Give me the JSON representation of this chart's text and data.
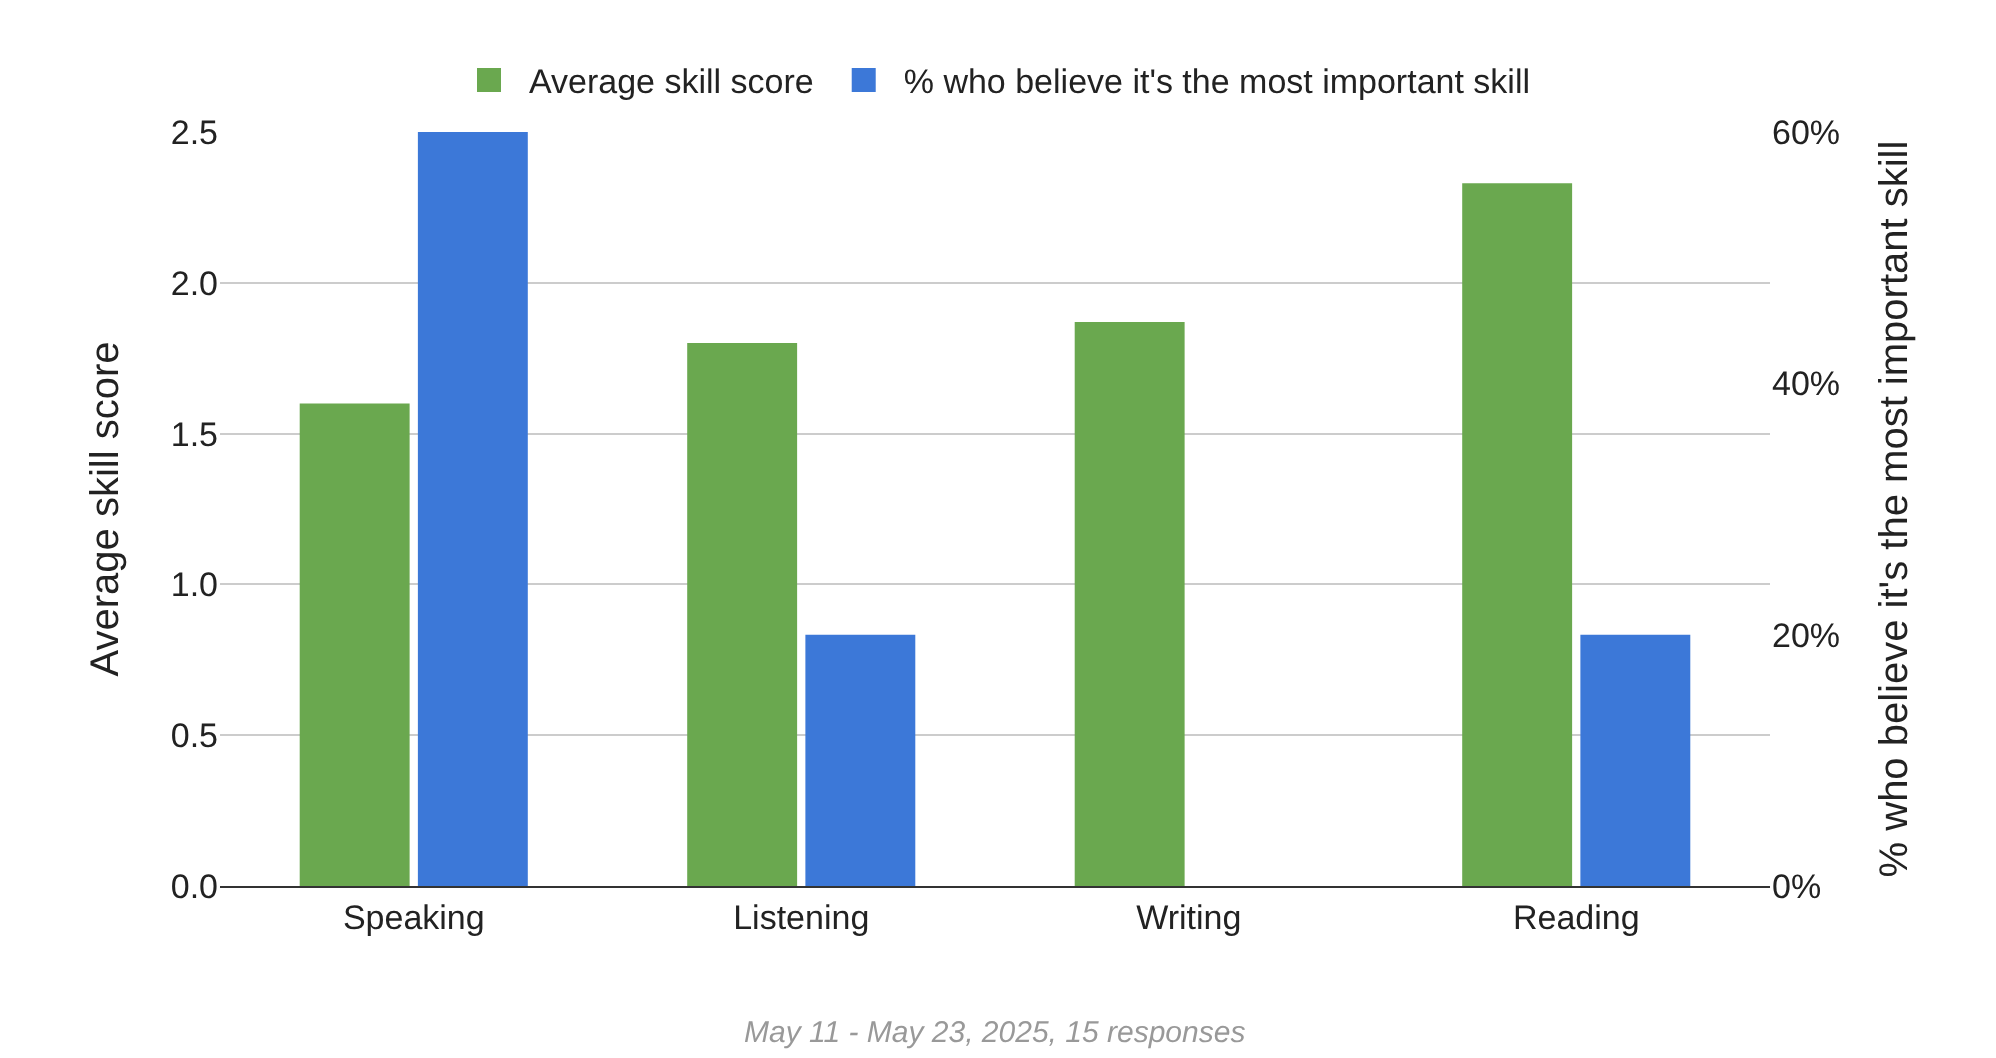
{
  "chart_data": {
    "type": "bar",
    "categories": [
      "Speaking",
      "Listening",
      "Writing",
      "Reading"
    ],
    "series": [
      {
        "name": "Average skill score",
        "color": "#6aa84f",
        "values": [
          1.6,
          1.8,
          1.87,
          2.33
        ]
      },
      {
        "name": "% who believe it's the most important skill",
        "color": "#3c78d8",
        "values": [
          60,
          20,
          0,
          20
        ],
        "axis": "y2"
      }
    ],
    "ylabel": "Average skill score",
    "y2label": "% who believe it's the most important skill",
    "ylim": [
      0,
      2.5
    ],
    "yticks": [
      {
        "value": 0,
        "label": "0.0"
      },
      {
        "value": 0.5,
        "label": "0.5"
      },
      {
        "value": 1,
        "label": "1.0"
      },
      {
        "value": 1.5,
        "label": "1.5"
      },
      {
        "value": 2,
        "label": "2.0"
      },
      {
        "value": 2.5,
        "label": "2.5"
      }
    ],
    "y2lim": [
      0,
      60
    ],
    "y2ticks": [
      {
        "value": 0,
        "label": "0%"
      },
      {
        "value": 20,
        "label": "20%"
      },
      {
        "value": 40,
        "label": "40%"
      },
      {
        "value": 60,
        "label": "60%"
      }
    ],
    "grid": "y",
    "legend": "top",
    "annotations": [
      "May 11 - May 23, 2025, 15 responses"
    ]
  }
}
